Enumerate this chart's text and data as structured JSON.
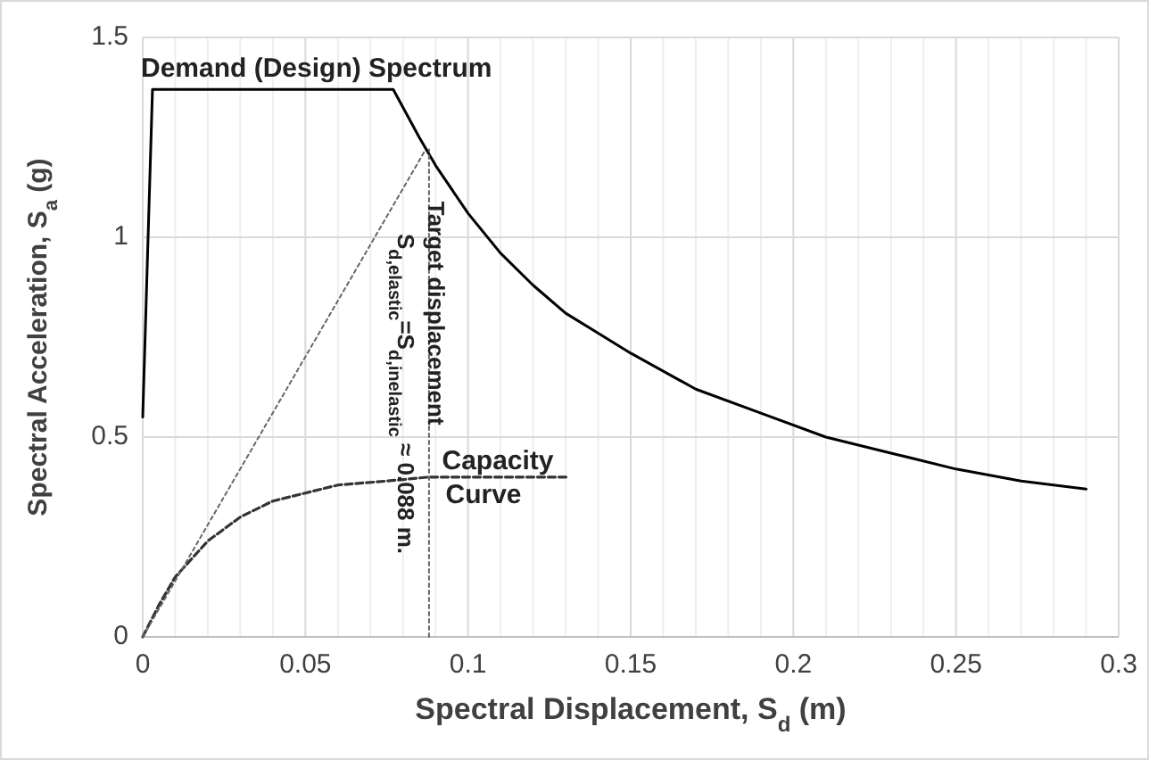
{
  "chart_data": {
    "type": "line",
    "xlabel": "Spectral Displacement, S$_{d}$ (m)",
    "ylabel": "Spectral Acceleration, S$_{a}$ (g)",
    "xlim": [
      0,
      0.3
    ],
    "ylim": [
      0,
      1.5
    ],
    "xticks": [
      0,
      {
        "value": 0.01,
        "label": null
      },
      {
        "value": 0.02,
        "label": null
      },
      {
        "value": 0.03,
        "label": null
      },
      {
        "value": 0.04,
        "label": null
      },
      0.05,
      {
        "value": 0.06,
        "label": null
      },
      {
        "value": 0.07,
        "label": null
      },
      {
        "value": 0.08,
        "label": null
      },
      {
        "value": 0.09,
        "label": null
      },
      0.1,
      {
        "value": 0.11,
        "label": null
      },
      {
        "value": 0.12,
        "label": null
      },
      {
        "value": 0.13,
        "label": null
      },
      {
        "value": 0.14,
        "label": null
      },
      0.15,
      {
        "value": 0.16,
        "label": null
      },
      {
        "value": 0.17,
        "label": null
      },
      {
        "value": 0.18,
        "label": null
      },
      {
        "value": 0.19,
        "label": null
      },
      0.2,
      {
        "value": 0.21,
        "label": null
      },
      {
        "value": 0.22,
        "label": null
      },
      {
        "value": 0.23,
        "label": null
      },
      {
        "value": 0.24,
        "label": null
      },
      0.25,
      {
        "value": 0.26,
        "label": null
      },
      {
        "value": 0.27,
        "label": null
      },
      {
        "value": 0.28,
        "label": null
      },
      {
        "value": 0.29,
        "label": null
      },
      0.3
    ],
    "yticks": [
      0,
      0.5,
      1,
      1.5
    ],
    "grid": true,
    "marker": "none",
    "series": [
      {
        "color": "#000000",
        "line_style": "solid",
        "x": [
          0,
          0.003,
          0.077,
          0.085,
          0.09,
          0.1,
          0.11,
          0.12,
          0.13,
          0.14,
          0.15,
          0.17,
          0.19,
          0.21,
          0.23,
          0.25,
          0.27,
          0.29
        ],
        "values": [
          0.55,
          1.37,
          1.37,
          1.25,
          1.18,
          1.06,
          0.96,
          0.88,
          0.81,
          0.76,
          0.71,
          0.62,
          0.56,
          0.5,
          0.46,
          0.42,
          0.39,
          0.37
        ]
      },
      {
        "color": "#333333",
        "line_style": "dashed",
        "x": [
          0,
          0.005,
          0.01,
          0.02,
          0.03,
          0.04,
          0.05,
          0.06,
          0.075,
          0.088,
          0.131
        ],
        "values": [
          0,
          0.08,
          0.15,
          0.24,
          0.3,
          0.34,
          0.36,
          0.38,
          0.39,
          0.4,
          0.4
        ]
      },
      {
        "color": "#666666",
        "line_style": "dotted",
        "x": [
          0,
          0.087
        ],
        "values": [
          0,
          1.22
        ]
      },
      {
        "color": "#666666",
        "line_style": "dotted",
        "x": [
          0.088,
          0.088
        ],
        "values": [
          0,
          1.22
        ]
      }
    ],
    "annotations": [
      "Demand (Design) Spectrum",
      {
        "text": "Capacity Curve",
        "x": 0.092,
        "y": 0.42
      },
      {
        "text": "Target displacement",
        "x": 0.0895,
        "y": 1.09
      },
      "S$_{d,elastic}$=S$_{d,inelastic}$ ≈ 0.088 m."
    ]
  }
}
